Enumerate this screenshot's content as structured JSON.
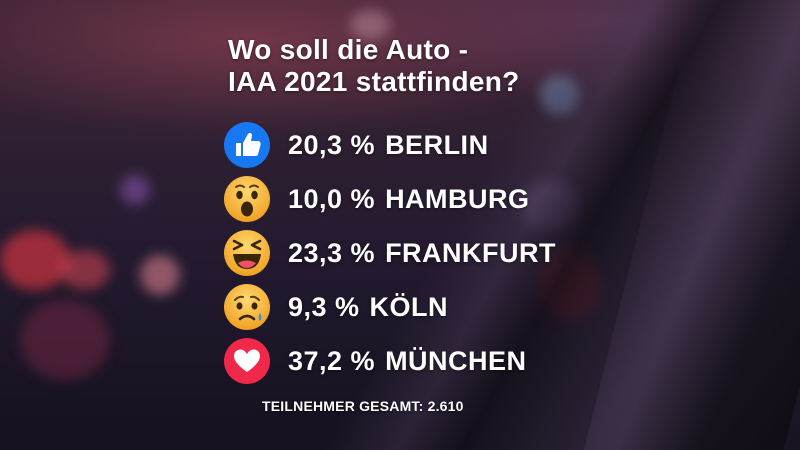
{
  "title_line1": "Wo soll die Auto -",
  "title_line2": "IAA 2021 stattfinden?",
  "footer_label": "TEILNEHMER GESAMT: 2.610",
  "chart_data": {
    "type": "table",
    "title": "Wo soll die Auto - IAA 2021 stattfinden?",
    "rows": [
      {
        "icon": "like-icon",
        "value": 20.3,
        "display": "20,3 %",
        "city": "BERLIN"
      },
      {
        "icon": "wow-icon",
        "value": 10.0,
        "display": "10,0 %",
        "city": "HAMBURG"
      },
      {
        "icon": "haha-icon",
        "value": 23.3,
        "display": "23,3 %",
        "city": "FRANKFURT"
      },
      {
        "icon": "sad-icon",
        "value": 9.3,
        "display": "9,3 %",
        "city": "KÖLN"
      },
      {
        "icon": "love-icon",
        "value": 37.2,
        "display": "37,2 %",
        "city": "MÜNCHEN"
      }
    ],
    "total_label": "TEILNEHMER GESAMT: 2.610",
    "total": 2610
  },
  "colors": {
    "like_blue": "#1877f2",
    "emoji_yellow": "#f7b125",
    "love_red": "#f0284a",
    "text": "#ffffff"
  }
}
